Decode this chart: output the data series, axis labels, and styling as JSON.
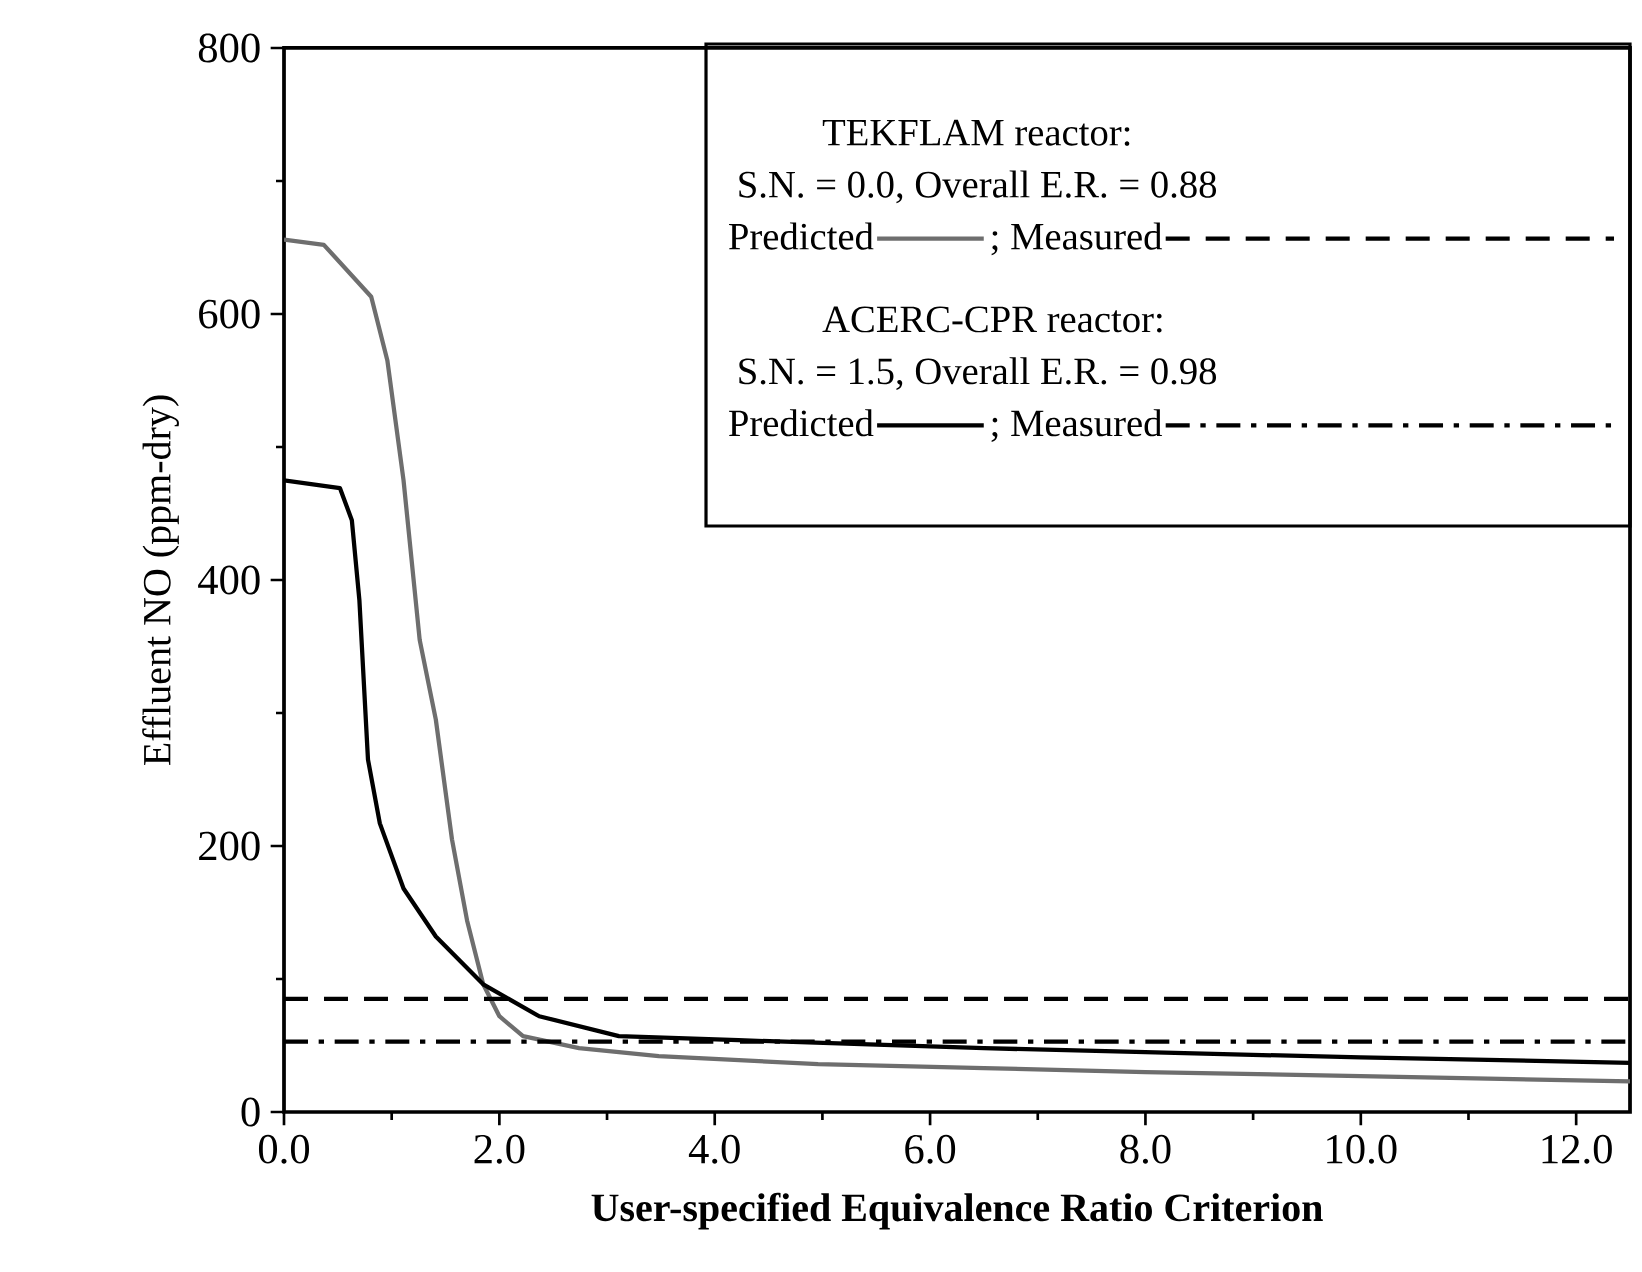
{
  "chart_data": {
    "type": "line",
    "xlabel": "User-specified Equivalence Ratio Criterion",
    "ylabel": "Effluent NO (ppm-dry)",
    "xlim": [
      0,
      12.5
    ],
    "ylim": [
      0,
      800
    ],
    "xticks": [
      {
        "value": 0,
        "label": "0.0"
      },
      {
        "value": 2,
        "label": "2.0"
      },
      {
        "value": 4,
        "label": "4.0"
      },
      {
        "value": 6,
        "label": "6.0"
      },
      {
        "value": 8,
        "label": "8.0"
      },
      {
        "value": 10,
        "label": "10.0"
      },
      {
        "value": 12,
        "label": "12.0"
      }
    ],
    "yticks": [
      0,
      200,
      400,
      600,
      800
    ],
    "annotations": [
      "TEKFLAM reactor:",
      "S.N. = 0.0, Overall E.R. = 0.88",
      "Predicted",
      "; Measured",
      "ACERC-CPR reactor:",
      "S.N. = 1.5, Overall E.R. = 0.98",
      "Predicted",
      "; Measured"
    ],
    "series": [
      {
        "color": "#6e6e6e",
        "line_style": "solid",
        "x": [
          0,
          0.37,
          0.81,
          0.96,
          1.11,
          1.26,
          1.41,
          1.56,
          1.7,
          1.85,
          2.0,
          2.22,
          2.74,
          3.48,
          4.96,
          6.5,
          8,
          10,
          12.5
        ],
        "values": [
          656,
          652,
          613,
          565,
          475,
          355,
          295,
          205,
          144,
          96,
          72,
          57,
          48,
          42,
          36,
          33,
          30,
          27,
          23
        ]
      },
      {
        "color": "#000000",
        "line_style": "dashed",
        "x": [
          0,
          12.5
        ],
        "values": [
          85,
          85
        ]
      },
      {
        "color": "#000000",
        "line_style": "solid",
        "x": [
          0,
          0.52,
          0.63,
          0.7,
          0.78,
          0.89,
          1.11,
          1.41,
          1.85,
          2.37,
          3.11,
          4.22,
          6.5,
          8,
          10,
          12.5
        ],
        "values": [
          475,
          469,
          445,
          385,
          265,
          217,
          168,
          132,
          96,
          72,
          57,
          54,
          48,
          45,
          41,
          37
        ]
      },
      {
        "color": "#000000",
        "line_style": "dashdot",
        "x": [
          0,
          12.5
        ],
        "values": [
          53,
          53
        ]
      }
    ]
  }
}
